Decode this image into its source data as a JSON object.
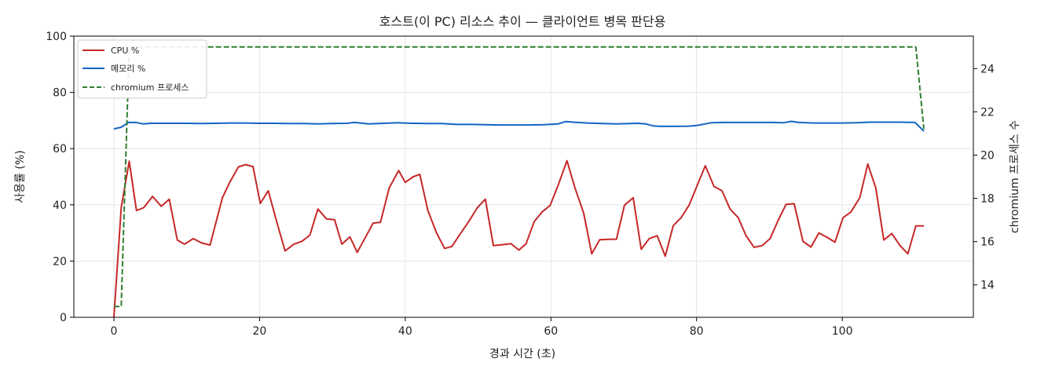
{
  "chart_data": {
    "type": "line",
    "title": "호스트(이 PC) 리소스 추이 — 클라이언트 병목 판단용",
    "xlabel": "경과 시간 (초)",
    "ylabel": "사용률 (%)",
    "y2label": "chromium 프로세스 수",
    "xlim": [
      -5.5,
      118
    ],
    "ylim": [
      0,
      100
    ],
    "y2lim": [
      12.5,
      25.5
    ],
    "xticks": [
      "0",
      "20",
      "40",
      "60",
      "80",
      "100"
    ],
    "yticks": [
      "0",
      "20",
      "40",
      "60",
      "80",
      "100"
    ],
    "y2ticks": [
      "14",
      "16",
      "18",
      "20",
      "22",
      "24"
    ],
    "grid": true,
    "legend_position": "top-left",
    "series": [
      {
        "name": "CPU %",
        "axis": "left",
        "color": "#c62828",
        "style": "solid",
        "points": [
          [
            0,
            0
          ],
          [
            1,
            39
          ],
          [
            2.1,
            55.5
          ],
          [
            3.1,
            38
          ],
          [
            4.1,
            39
          ],
          [
            5.3,
            43
          ],
          [
            6.5,
            39.5
          ],
          [
            7.6,
            42
          ],
          [
            8.7,
            27.5
          ],
          [
            9.7,
            26
          ],
          [
            10.9,
            28
          ],
          [
            12,
            26.5
          ],
          [
            13.2,
            25.7
          ],
          [
            14.9,
            42.5
          ],
          [
            15.9,
            48
          ],
          [
            17.1,
            53.5
          ],
          [
            18.1,
            54.3
          ],
          [
            19.1,
            53.6
          ],
          [
            20.1,
            40.5
          ],
          [
            21.2,
            45
          ],
          [
            22.3,
            34.5
          ],
          [
            23.5,
            23.6
          ],
          [
            24.7,
            26
          ],
          [
            25.8,
            27
          ],
          [
            26.9,
            29.2
          ],
          [
            28,
            38.5
          ],
          [
            29.2,
            35
          ],
          [
            30.3,
            34.7
          ],
          [
            31.3,
            26
          ],
          [
            32.4,
            28.6
          ],
          [
            33.4,
            23.1
          ],
          [
            35.6,
            33.5
          ],
          [
            36.6,
            33.8
          ],
          [
            37.8,
            46
          ],
          [
            39.1,
            52.2
          ],
          [
            40,
            48
          ],
          [
            41.1,
            50
          ],
          [
            42,
            50.8
          ],
          [
            43.1,
            38
          ],
          [
            44.3,
            30
          ],
          [
            45.4,
            24.5
          ],
          [
            46.4,
            25.2
          ],
          [
            47.5,
            29.5
          ],
          [
            48.7,
            34
          ],
          [
            49.9,
            39
          ],
          [
            51,
            42
          ],
          [
            52.1,
            25.5
          ],
          [
            53.3,
            25.8
          ],
          [
            54.5,
            26.2
          ],
          [
            55.6,
            23.9
          ],
          [
            56.6,
            26.2
          ],
          [
            57.7,
            34
          ],
          [
            58.8,
            37.5
          ],
          [
            59.9,
            39.8
          ],
          [
            61,
            47
          ],
          [
            62.2,
            55.7
          ],
          [
            63.3,
            46
          ],
          [
            64.5,
            37
          ],
          [
            65.6,
            22.6
          ],
          [
            66.7,
            27.6
          ],
          [
            67.8,
            27.7
          ],
          [
            69,
            27.8
          ],
          [
            70.1,
            39.9
          ],
          [
            71.3,
            42.5
          ],
          [
            72.4,
            24.2
          ],
          [
            73.5,
            28
          ],
          [
            74.6,
            29
          ],
          [
            75.7,
            21.7
          ],
          [
            76.8,
            32.6
          ],
          [
            77.9,
            35.5
          ],
          [
            79,
            40
          ],
          [
            80.1,
            47
          ],
          [
            81.2,
            53.9
          ],
          [
            82.4,
            46.5
          ],
          [
            83.5,
            45
          ],
          [
            84.6,
            38.5
          ],
          [
            85.7,
            35.5
          ],
          [
            86.8,
            29
          ],
          [
            87.9,
            24.9
          ],
          [
            89,
            25.5
          ],
          [
            90.1,
            28
          ],
          [
            91.2,
            34.5
          ],
          [
            92.3,
            40.2
          ],
          [
            93.4,
            40.4
          ],
          [
            94.6,
            27
          ],
          [
            95.7,
            25
          ],
          [
            96.8,
            30
          ],
          [
            97.9,
            28.5
          ],
          [
            99,
            26.7
          ],
          [
            100.1,
            35.4
          ],
          [
            101.2,
            37.5
          ],
          [
            102.4,
            42.5
          ],
          [
            103.5,
            54.5
          ],
          [
            104.6,
            46
          ],
          [
            105.7,
            27.5
          ],
          [
            106.8,
            29.8
          ],
          [
            107.9,
            25.6
          ],
          [
            109,
            22.6
          ],
          [
            110.1,
            32.5
          ],
          [
            111.2,
            32.5
          ]
        ]
      },
      {
        "name": "메모리 %",
        "axis": "left",
        "color": "#1565c0",
        "style": "solid",
        "points": [
          [
            0,
            67
          ],
          [
            1,
            67.6
          ],
          [
            2,
            69.3
          ],
          [
            3,
            69.3
          ],
          [
            4,
            68.8
          ],
          [
            5,
            69
          ],
          [
            6,
            69
          ],
          [
            8,
            69
          ],
          [
            10,
            69
          ],
          [
            12,
            68.9
          ],
          [
            14,
            69
          ],
          [
            16,
            69.1
          ],
          [
            18,
            69.1
          ],
          [
            20,
            69
          ],
          [
            22,
            69
          ],
          [
            24,
            68.9
          ],
          [
            26,
            68.9
          ],
          [
            28,
            68.8
          ],
          [
            30,
            68.9
          ],
          [
            32,
            69
          ],
          [
            33,
            69.3
          ],
          [
            35,
            68.8
          ],
          [
            37,
            69
          ],
          [
            39,
            69.2
          ],
          [
            41,
            69
          ],
          [
            43,
            68.9
          ],
          [
            45,
            68.9
          ],
          [
            47,
            68.6
          ],
          [
            49,
            68.6
          ],
          [
            51,
            68.5
          ],
          [
            53,
            68.4
          ],
          [
            55,
            68.4
          ],
          [
            57,
            68.4
          ],
          [
            59,
            68.5
          ],
          [
            61,
            68.8
          ],
          [
            62,
            69.6
          ],
          [
            63,
            69.4
          ],
          [
            65,
            69.1
          ],
          [
            67,
            68.9
          ],
          [
            69,
            68.8
          ],
          [
            71,
            68.9
          ],
          [
            72,
            69
          ],
          [
            73,
            68.8
          ],
          [
            74,
            68.1
          ],
          [
            75,
            67.9
          ],
          [
            77,
            67.9
          ],
          [
            79,
            68
          ],
          [
            80,
            68.2
          ],
          [
            82,
            69.2
          ],
          [
            84,
            69.3
          ],
          [
            86,
            69.3
          ],
          [
            88,
            69.3
          ],
          [
            90,
            69.3
          ],
          [
            92,
            69.2
          ],
          [
            93,
            69.7
          ],
          [
            94,
            69.3
          ],
          [
            96,
            69.1
          ],
          [
            98,
            69.1
          ],
          [
            100,
            69.1
          ],
          [
            102,
            69.2
          ],
          [
            104,
            69.4
          ],
          [
            106,
            69.4
          ],
          [
            108,
            69.4
          ],
          [
            110,
            69.3
          ],
          [
            111.2,
            66.2
          ]
        ]
      },
      {
        "name": "chromium 프로세스",
        "axis": "right",
        "color": "#2e7d32",
        "style": "dashed",
        "points": [
          [
            0,
            13
          ],
          [
            1,
            13
          ],
          [
            2.1,
            25
          ],
          [
            3,
            25
          ],
          [
            10,
            25
          ],
          [
            20,
            25
          ],
          [
            30,
            25
          ],
          [
            40,
            25
          ],
          [
            50,
            25
          ],
          [
            60,
            25
          ],
          [
            70,
            25
          ],
          [
            80,
            25
          ],
          [
            90,
            25
          ],
          [
            100,
            25
          ],
          [
            110.1,
            25
          ],
          [
            111.2,
            21.2
          ]
        ]
      }
    ]
  }
}
